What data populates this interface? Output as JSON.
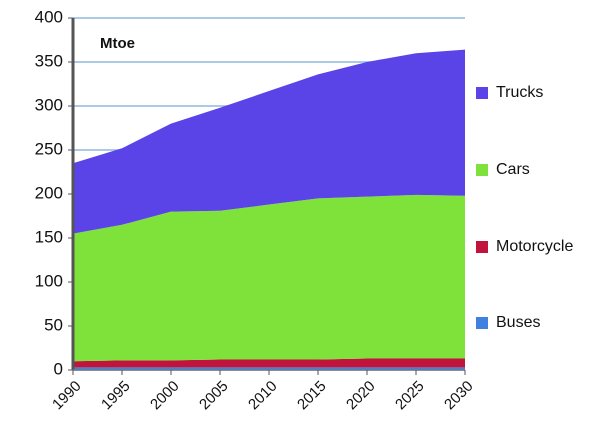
{
  "chart_data": {
    "type": "area",
    "stacked": true,
    "title": "Mtoe",
    "x": [
      1990,
      1995,
      2000,
      2005,
      2010,
      2015,
      2020,
      2025,
      2030
    ],
    "series": [
      {
        "name": "Buses",
        "color": "#3f80e0",
        "values": [
          3,
          3,
          3,
          3,
          3,
          3,
          3,
          3,
          3
        ]
      },
      {
        "name": "Motorcycle",
        "color": "#c0143c",
        "values": [
          7,
          8,
          8,
          9,
          9,
          9,
          10,
          10,
          10
        ]
      },
      {
        "name": "Cars",
        "color": "#7ee23a",
        "values": [
          145,
          154,
          169,
          169,
          176,
          183,
          184,
          186,
          185
        ]
      },
      {
        "name": "Trucks",
        "color": "#5a44e8",
        "values": [
          80,
          87,
          100,
          117,
          129,
          141,
          153,
          161,
          166
        ]
      }
    ],
    "xlim": [
      1990,
      2030
    ],
    "xticks": [
      1990,
      1995,
      2000,
      2005,
      2010,
      2015,
      2020,
      2025,
      2030
    ],
    "ylim": [
      0,
      400
    ],
    "yticks": [
      0,
      50,
      100,
      150,
      200,
      250,
      300,
      350,
      400
    ],
    "grid": true,
    "grid_color": "#8fb8e2",
    "legend": "right"
  }
}
